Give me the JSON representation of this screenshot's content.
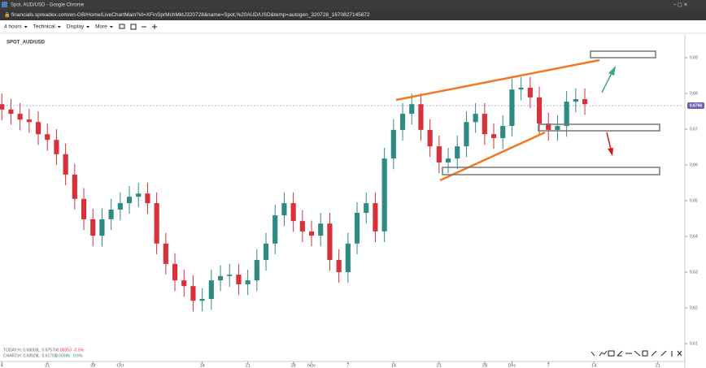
{
  "browser": {
    "window_title": "Spot, AUD/USD - Google Chrome",
    "url": "financials.spreadex.com/en-GB/Home/LiveChartMain?id=XFinSprMchMktJ320728&name=Spot,%20AUD/USD&temp=autogen_320728_1670827145872"
  },
  "toolbar": {
    "items": [
      "4 hours",
      "Technical",
      "Display",
      "More"
    ]
  },
  "stats": {
    "rows": [
      [
        "TODAY:",
        "H: 0.68050",
        "L: 0.67570",
        "-0.00353",
        "-0.5%"
      ],
      [
        "CHART:",
        "H: 0.68929",
        "L: 0.61703",
        "0.00396",
        "0.6%"
      ]
    ]
  },
  "chart_data": {
    "type": "candlestick",
    "title": "SPOT_AUD/USD",
    "x": [
      0,
      1,
      2,
      3,
      4,
      5,
      6,
      7,
      8,
      9,
      10,
      11,
      12,
      13,
      14,
      15,
      16,
      17,
      18,
      19,
      20,
      21,
      22,
      23,
      24,
      25,
      26,
      27,
      28,
      29,
      30,
      31,
      32,
      33,
      34,
      35,
      36,
      37,
      38,
      39,
      40,
      41,
      42,
      43,
      44,
      45,
      46,
      47,
      48,
      49,
      50,
      51,
      52,
      53,
      54,
      55,
      56,
      57,
      58,
      59,
      60,
      61,
      62,
      63,
      64
    ],
    "open": [
      0.677,
      0.6755,
      0.6743,
      0.6727,
      0.672,
      0.6686,
      0.667,
      0.663,
      0.6573,
      0.6505,
      0.6448,
      0.6402,
      0.6448,
      0.6475,
      0.6493,
      0.6511,
      0.652,
      0.6493,
      0.638,
      0.6323,
      0.6277,
      0.6261,
      0.622,
      0.6225,
      0.6277,
      0.6289,
      0.6293,
      0.6266,
      0.6277,
      0.6334,
      0.638,
      0.6459,
      0.6493,
      0.6443,
      0.6414,
      0.6402,
      0.6436,
      0.6334,
      0.63,
      0.638,
      0.6466,
      0.6493,
      0.6414,
      0.6618,
      0.6698,
      0.6743,
      0.677,
      0.6698,
      0.6652,
      0.6607,
      0.6618,
      0.6652,
      0.672,
      0.6743,
      0.6686,
      0.6675,
      0.6709,
      0.6811,
      0.6816,
      0.6789,
      0.6716,
      0.6698,
      0.6709,
      0.6777,
      0.6784
    ],
    "high": [
      0.68,
      0.6785,
      0.6773,
      0.6757,
      0.675,
      0.6716,
      0.67,
      0.666,
      0.6603,
      0.6535,
      0.6478,
      0.6478,
      0.6505,
      0.6523,
      0.6541,
      0.655,
      0.655,
      0.6523,
      0.641,
      0.6353,
      0.6307,
      0.6291,
      0.6255,
      0.6307,
      0.6319,
      0.6323,
      0.6323,
      0.6307,
      0.6364,
      0.641,
      0.6489,
      0.6523,
      0.6523,
      0.6473,
      0.6444,
      0.6466,
      0.6466,
      0.6364,
      0.641,
      0.6496,
      0.6523,
      0.6523,
      0.6648,
      0.6728,
      0.6773,
      0.68,
      0.68,
      0.6728,
      0.6682,
      0.6648,
      0.6682,
      0.675,
      0.6773,
      0.6773,
      0.6716,
      0.6739,
      0.6841,
      0.6846,
      0.6846,
      0.6819,
      0.6746,
      0.6739,
      0.6807,
      0.6814,
      0.6814
    ],
    "low": [
      0.6725,
      0.6713,
      0.6697,
      0.669,
      0.6656,
      0.664,
      0.66,
      0.6543,
      0.6475,
      0.6418,
      0.6372,
      0.6372,
      0.6418,
      0.6445,
      0.6463,
      0.6481,
      0.6463,
      0.635,
      0.6293,
      0.6247,
      0.6231,
      0.619,
      0.619,
      0.6195,
      0.6247,
      0.6259,
      0.6236,
      0.6236,
      0.6247,
      0.6304,
      0.635,
      0.6429,
      0.6413,
      0.6384,
      0.6372,
      0.6372,
      0.6304,
      0.627,
      0.627,
      0.635,
      0.6436,
      0.6384,
      0.6384,
      0.6588,
      0.6668,
      0.6713,
      0.6668,
      0.6622,
      0.6577,
      0.6577,
      0.6588,
      0.6622,
      0.669,
      0.6656,
      0.6645,
      0.6645,
      0.6679,
      0.6781,
      0.6759,
      0.6686,
      0.6668,
      0.6668,
      0.6679,
      0.6747,
      0.674
    ],
    "close": [
      0.6755,
      0.6743,
      0.6727,
      0.672,
      0.6686,
      0.667,
      0.663,
      0.6573,
      0.6505,
      0.6448,
      0.6402,
      0.6448,
      0.6475,
      0.6493,
      0.6511,
      0.652,
      0.6493,
      0.638,
      0.6323,
      0.6277,
      0.6261,
      0.622,
      0.6225,
      0.6277,
      0.6289,
      0.6293,
      0.6266,
      0.6277,
      0.6334,
      0.638,
      0.6459,
      0.6493,
      0.6443,
      0.6414,
      0.6402,
      0.6436,
      0.6334,
      0.63,
      0.638,
      0.6466,
      0.6493,
      0.6414,
      0.6618,
      0.6698,
      0.6743,
      0.677,
      0.6698,
      0.6652,
      0.6607,
      0.6618,
      0.6652,
      0.672,
      0.6743,
      0.6686,
      0.6675,
      0.6709,
      0.6811,
      0.6816,
      0.6789,
      0.6716,
      0.6698,
      0.6709,
      0.6777,
      0.6784,
      0.677
    ],
    "up_color": "#2e8b83",
    "down_color": "#d9303a",
    "xlim": [
      -0.2,
      74.8
    ],
    "xticks": [
      {
        "value": 0,
        "label": "4"
      },
      {
        "value": 5,
        "label": "21"
      },
      {
        "value": 10,
        "label": "28"
      },
      {
        "value": 13,
        "label": "Oct"
      },
      {
        "value": 22,
        "label": "14"
      },
      {
        "value": 27,
        "label": "21"
      },
      {
        "value": 32,
        "label": "28"
      },
      {
        "value": 34,
        "label": "Nov"
      },
      {
        "value": 38,
        "label": "7"
      },
      {
        "value": 43,
        "label": "14"
      },
      {
        "value": 48,
        "label": "21"
      },
      {
        "value": 53,
        "label": "28"
      },
      {
        "value": 56,
        "label": "Dec"
      },
      {
        "value": 60,
        "label": "7"
      },
      {
        "value": 65,
        "label": "14"
      },
      {
        "value": 72,
        "label": "21"
      }
    ],
    "ylim": [
      0.605,
      0.6966
    ],
    "yticks": [
      0.61,
      0.62,
      0.63,
      0.64,
      0.65,
      0.66,
      0.67,
      0.68,
      0.69
    ],
    "last_price": 0.6766,
    "last_price_color": "#6a5fb3"
  }
}
